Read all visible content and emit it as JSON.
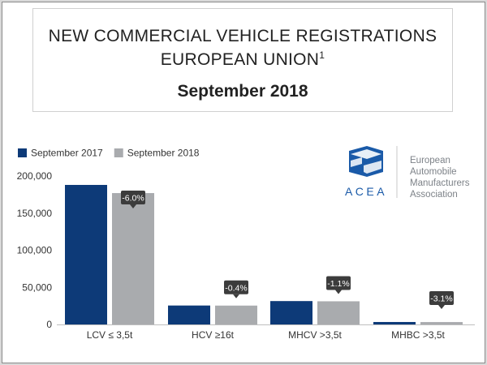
{
  "title": {
    "line1": "NEW COMMERCIAL VEHICLE REGISTRATIONS",
    "line2": "EUROPEAN UNION",
    "line2_sup": "1",
    "subtitle": "September 2018"
  },
  "logo": {
    "mark": "ACEA",
    "lines": [
      "European",
      "Automobile",
      "Manufacturers",
      "Association"
    ]
  },
  "colors": {
    "series_2017": "#0d3a78",
    "series_2018": "#a9abae",
    "label_bg": "#3c3c3c"
  },
  "chart_data": {
    "type": "bar",
    "categories": [
      "LCV ≤ 3,5t",
      "HCV ≥16t",
      "MHCV >3,5t",
      "MHBC >3,5t"
    ],
    "series": [
      {
        "name": "September 2017",
        "values": [
          188000,
          25500,
          31500,
          3300
        ]
      },
      {
        "name": "September 2018",
        "values": [
          177000,
          25400,
          31200,
          3200
        ]
      }
    ],
    "annotations": [
      "-6.0%",
      "-0.4%",
      "-1.1%",
      "-3.1%"
    ],
    "y_ticks": [
      "0",
      "50,000",
      "100,000",
      "150,000",
      "200,000"
    ],
    "ylim": [
      0,
      200000
    ],
    "legend": "top-left",
    "grid": false
  }
}
